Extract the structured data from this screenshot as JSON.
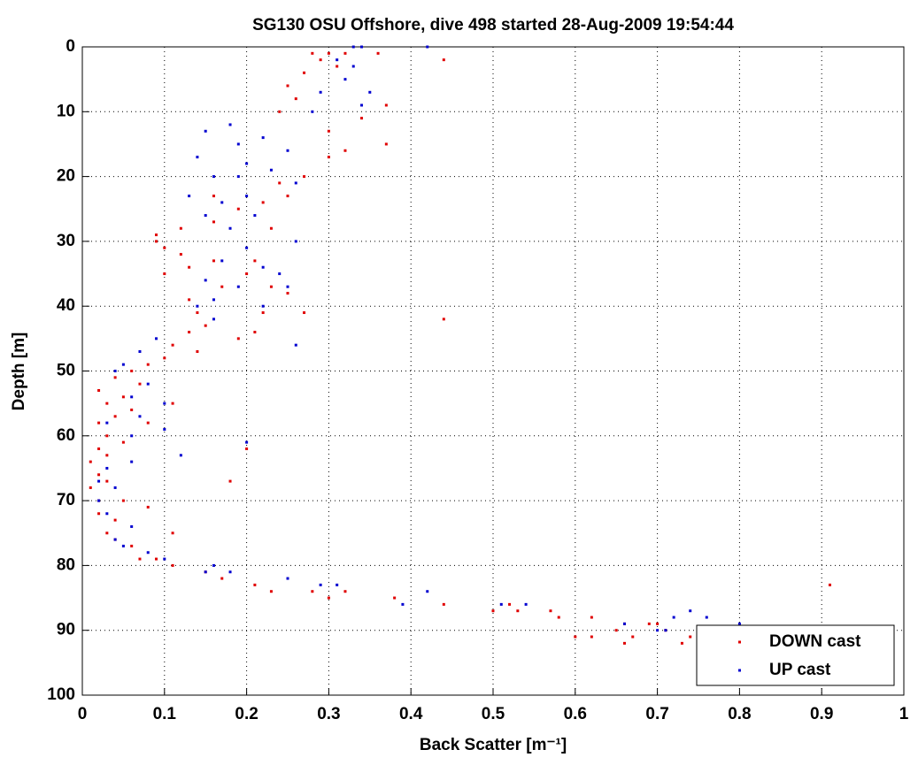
{
  "chart_data": {
    "type": "scatter",
    "title": "SG130 OSU Offshore, dive 498 started 28-Aug-2009 19:54:44",
    "xlabel": "Back Scatter [m⁻¹]",
    "ylabel": "Depth [m]",
    "xlim": [
      0,
      1
    ],
    "ylim": [
      0,
      100
    ],
    "y_inverted": true,
    "xticks": [
      0,
      0.1,
      0.2,
      0.3,
      0.4,
      0.5,
      0.6,
      0.7,
      0.8,
      0.9,
      1
    ],
    "yticks": [
      0,
      10,
      20,
      30,
      40,
      50,
      60,
      70,
      80,
      90,
      100
    ],
    "grid": true,
    "legend": "lower right",
    "series": [
      {
        "name": "DOWN cast",
        "color": "#e00000",
        "x": [
          0.28,
          0.3,
          0.32,
          0.36,
          0.44,
          0.29,
          0.31,
          0.27,
          0.25,
          0.26,
          0.37,
          0.24,
          0.34,
          0.3,
          0.37,
          0.32,
          0.3,
          0.27,
          0.24,
          0.25,
          0.22,
          0.16,
          0.19,
          0.16,
          0.12,
          0.23,
          0.09,
          0.1,
          0.12,
          0.16,
          0.21,
          0.13,
          0.1,
          0.2,
          0.17,
          0.23,
          0.25,
          0.13,
          0.14,
          0.22,
          0.27,
          0.44,
          0.15,
          0.13,
          0.19,
          0.21,
          0.11,
          0.14,
          0.1,
          0.08,
          0.06,
          0.04,
          0.07,
          0.02,
          0.05,
          0.03,
          0.11,
          0.06,
          0.04,
          0.02,
          0.08,
          0.03,
          0.05,
          0.02,
          0.2,
          0.03,
          0.01,
          0.02,
          0.03,
          0.18,
          0.01,
          0.02,
          0.05,
          0.08,
          0.02,
          0.04,
          0.03,
          0.11,
          0.04,
          0.06,
          0.07,
          0.09,
          0.11,
          0.15,
          0.17,
          0.21,
          0.23,
          0.28,
          0.3,
          0.32,
          0.38,
          0.44,
          0.5,
          0.52,
          0.53,
          0.57,
          0.58,
          0.62,
          0.66,
          0.69,
          0.7,
          0.71,
          0.65,
          0.6,
          0.62,
          0.67,
          0.66,
          0.73,
          0.74,
          0.91,
          0.09
        ],
        "values": [
          1,
          1,
          1,
          1,
          2,
          2,
          3,
          4,
          6,
          8,
          9,
          10,
          11,
          13,
          15,
          16,
          17,
          20,
          21,
          23,
          24,
          23,
          25,
          27,
          28,
          28,
          30,
          31,
          32,
          33,
          33,
          34,
          35,
          35,
          37,
          37,
          38,
          39,
          41,
          41,
          41,
          42,
          43,
          44,
          45,
          44,
          46,
          47,
          48,
          49,
          50,
          51,
          52,
          53,
          54,
          55,
          55,
          56,
          57,
          58,
          58,
          60,
          61,
          62,
          62,
          63,
          64,
          66,
          67,
          67,
          68,
          70,
          70,
          71,
          72,
          73,
          75,
          75,
          76,
          77,
          79,
          79,
          80,
          81,
          82,
          83,
          84,
          84,
          85,
          84,
          85,
          86,
          87,
          86,
          87,
          87,
          88,
          88,
          89,
          89,
          89,
          90,
          90,
          91,
          91,
          91,
          92,
          92,
          91,
          83,
          29
        ]
      },
      {
        "name": "UP cast",
        "color": "#0000d0",
        "x": [
          0.33,
          0.34,
          0.42,
          0.31,
          0.33,
          0.32,
          0.29,
          0.35,
          0.34,
          0.28,
          0.18,
          0.15,
          0.22,
          0.19,
          0.25,
          0.14,
          0.2,
          0.23,
          0.16,
          0.19,
          0.26,
          0.13,
          0.2,
          0.17,
          0.21,
          0.15,
          0.18,
          0.26,
          0.2,
          0.17,
          0.22,
          0.24,
          0.15,
          0.19,
          0.25,
          0.16,
          0.14,
          0.22,
          0.16,
          0.26,
          0.09,
          0.07,
          0.05,
          0.04,
          0.08,
          0.06,
          0.1,
          0.07,
          0.03,
          0.1,
          0.06,
          0.2,
          0.12,
          0.06,
          0.03,
          0.02,
          0.04,
          0.02,
          0.03,
          0.06,
          0.04,
          0.05,
          0.08,
          0.1,
          0.16,
          0.15,
          0.18,
          0.25,
          0.29,
          0.31,
          0.42,
          0.39,
          0.51,
          0.54,
          0.66,
          0.72,
          0.74,
          0.76,
          0.8,
          0.71,
          0.7
        ],
        "values": [
          0,
          0,
          0,
          2,
          3,
          5,
          7,
          7,
          9,
          10,
          12,
          13,
          14,
          15,
          16,
          17,
          18,
          19,
          20,
          20,
          21,
          23,
          23,
          24,
          26,
          26,
          28,
          30,
          31,
          33,
          34,
          35,
          36,
          37,
          37,
          39,
          40,
          40,
          42,
          46,
          45,
          47,
          49,
          50,
          52,
          54,
          55,
          57,
          58,
          59,
          60,
          61,
          63,
          64,
          65,
          67,
          68,
          70,
          72,
          74,
          76,
          77,
          78,
          79,
          80,
          81,
          81,
          82,
          83,
          83,
          84,
          86,
          86,
          86,
          89,
          88,
          87,
          88,
          89,
          90,
          90
        ]
      }
    ]
  }
}
